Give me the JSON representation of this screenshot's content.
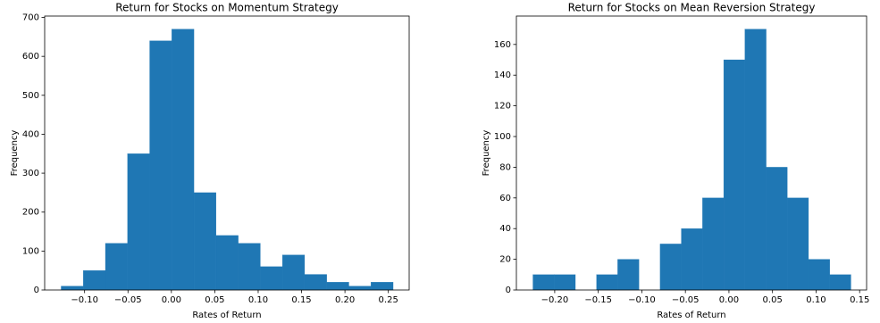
{
  "chart_data": [
    {
      "type": "histogram",
      "title": "Return for Stocks on Momentum Strategy",
      "xlabel": "Rates of Return",
      "ylabel": "Frequency",
      "bins": [
        -0.127,
        -0.1015,
        -0.076,
        -0.0505,
        -0.025,
        0.0005,
        0.026,
        0.0515,
        0.077,
        0.1025,
        0.128,
        0.1535,
        0.179,
        0.2045,
        0.23,
        0.2555
      ],
      "values": [
        10,
        50,
        120,
        350,
        640,
        670,
        250,
        140,
        120,
        60,
        90,
        40,
        20,
        10,
        20
      ],
      "color": "#1f77b4",
      "xlim": [
        -0.146,
        0.274
      ],
      "ylim": [
        0,
        703.5
      ],
      "xticks": [
        {
          "value": -0.1,
          "label": "−0.10"
        },
        {
          "value": -0.05,
          "label": "−0.05"
        },
        {
          "value": 0,
          "label": "0.00"
        },
        {
          "value": 0.05,
          "label": "0.05"
        },
        {
          "value": 0.1,
          "label": "0.10"
        },
        {
          "value": 0.15,
          "label": "0.15"
        },
        {
          "value": 0.2,
          "label": "0.20"
        },
        {
          "value": 0.25,
          "label": "0.25"
        }
      ],
      "yticks": [
        0,
        100,
        200,
        300,
        400,
        500,
        600,
        700
      ]
    },
    {
      "type": "histogram",
      "title": "Return for Stocks on Mean Reversion Strategy",
      "xlabel": "Rates of Return",
      "ylabel": "Frequency",
      "bins": [
        -0.225,
        -0.2007,
        -0.1763,
        -0.152,
        -0.1277,
        -0.1033,
        -0.079,
        -0.0547,
        -0.0303,
        -0.006,
        0.0183,
        0.0427,
        0.067,
        0.0913,
        0.1157,
        0.14
      ],
      "values": [
        10,
        10,
        0,
        10,
        20,
        0,
        30,
        40,
        60,
        150,
        170,
        80,
        60,
        20,
        10
      ],
      "color": "#1f77b4",
      "xlim": [
        -0.244,
        0.158
      ],
      "ylim": [
        0,
        178.5
      ],
      "xticks": [
        {
          "value": -0.2,
          "label": "−0.20"
        },
        {
          "value": -0.15,
          "label": "−0.15"
        },
        {
          "value": -0.1,
          "label": "−0.10"
        },
        {
          "value": -0.05,
          "label": "−0.05"
        },
        {
          "value": 0,
          "label": "0.00"
        },
        {
          "value": 0.05,
          "label": "0.05"
        },
        {
          "value": 0.1,
          "label": "0.10"
        },
        {
          "value": 0.15,
          "label": "0.15"
        }
      ],
      "yticks": [
        0,
        20,
        40,
        60,
        80,
        100,
        120,
        140,
        160
      ]
    }
  ]
}
